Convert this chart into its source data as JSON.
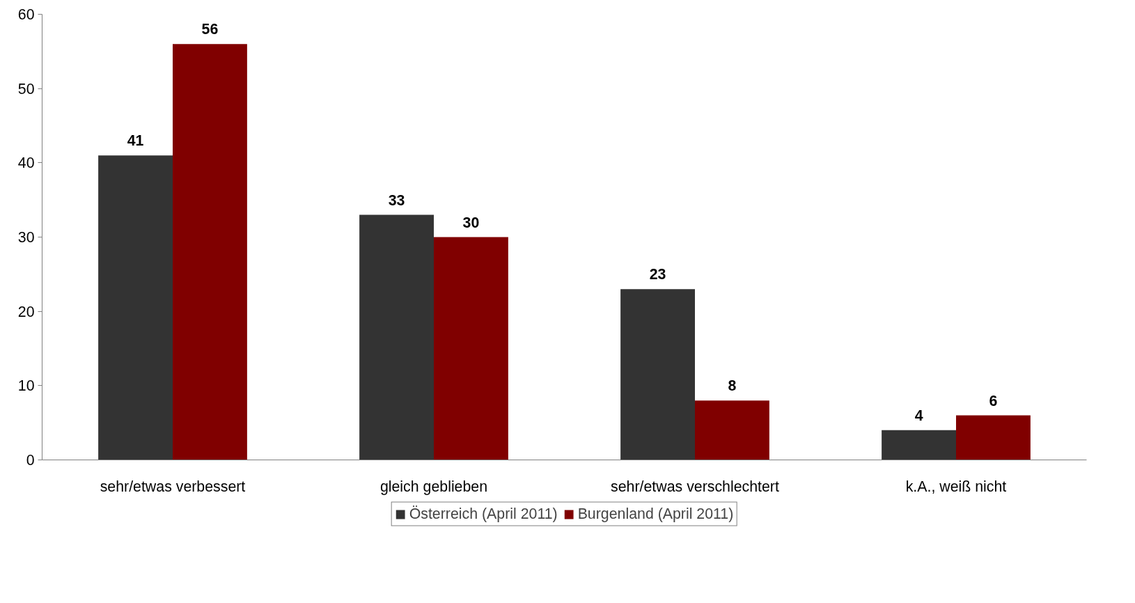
{
  "chart_data": {
    "type": "bar",
    "categories": [
      "sehr/etwas verbessert",
      "gleich geblieben",
      "sehr/etwas verschlechtert",
      "k.A., weiß nicht"
    ],
    "series": [
      {
        "name": "Österreich (April 2011)",
        "color": "#333333",
        "values": [
          41,
          33,
          23,
          4
        ]
      },
      {
        "name": "Burgenland (April 2011)",
        "color": "#800000",
        "values": [
          56,
          30,
          8,
          6
        ]
      }
    ],
    "ylim": [
      0,
      60
    ],
    "yticks": [
      0,
      10,
      20,
      30,
      40,
      50,
      60
    ],
    "grid": false,
    "legend": "bottom",
    "data_labels": true
  }
}
